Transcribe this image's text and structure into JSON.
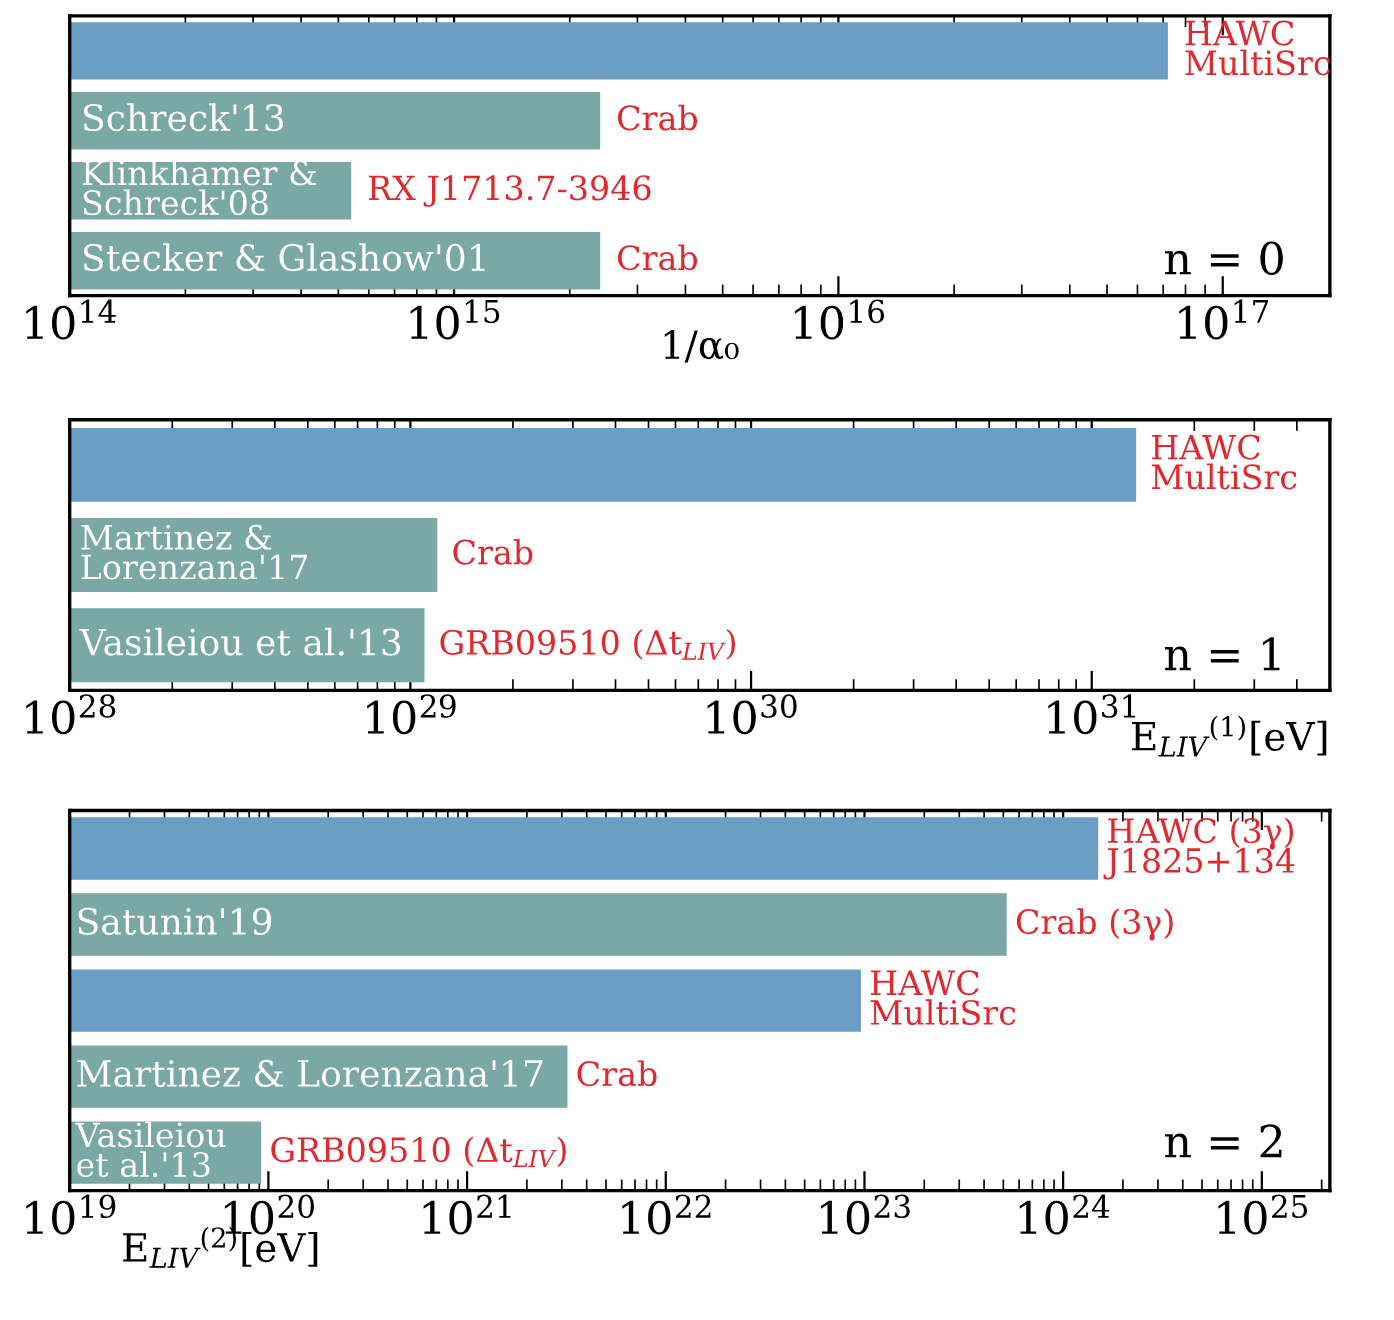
{
  "chart_data": [
    {
      "type": "bar",
      "orientation": "horizontal",
      "log": "x",
      "categories": [
        null,
        "Schreck'13",
        "Klinkhamer &\nSchreck'08",
        "Stecker & Glashow'01"
      ],
      "colors": [
        "#6a9ec4",
        "#7aa8a4",
        "#7aa8a4",
        "#7aa8a4"
      ],
      "values": [
        7.2e+16,
        2400000000000000.0,
        540000000000000.0,
        2400000000000000.0
      ],
      "xlim": [
        100000000000000.0,
        1.9e+17
      ],
      "xticks": [
        {
          "value": 100000000000000.0,
          "label": "10$^{14}$"
        },
        {
          "value": 1000000000000000.0,
          "label": "10$^{15}$"
        },
        {
          "value": 1e+16,
          "label": "10$^{16}$"
        },
        {
          "value": 1e+17,
          "label": "10$^{17}$"
        }
      ],
      "xlabel": "1/α₀",
      "annotations": [
        "HAWC\nMultiSrc",
        "Crab",
        "RX J1713.7-3946",
        "Crab",
        "n = 0"
      ]
    },
    {
      "type": "bar",
      "orientation": "horizontal",
      "log": "x",
      "categories": [
        null,
        "Martinez &\nLorenzana'17",
        "Vasileiou et al.'13"
      ],
      "colors": [
        "#6a9ec4",
        "#7aa8a4",
        "#7aa8a4"
      ],
      "values": [
        1.35e+31,
        1.2e+29,
        1.1e+29
      ],
      "xlim": [
        1e+28,
        5e+31
      ],
      "xticks": [
        {
          "value": 1e+28,
          "label": "10$^{28}$"
        },
        {
          "value": 1e+29,
          "label": "10$^{29}$"
        },
        {
          "value": 1e+30,
          "label": "10$^{30}$"
        },
        {
          "value": 1e+31,
          "label": "10$^{31}$"
        }
      ],
      "xlabel": "E$_{LIV}$$^{(1)}$[eV]",
      "annotations": [
        "HAWC\nMultiSrc",
        "Crab",
        "GRB09510 (Δt$_{LIV}$)",
        "n = 1"
      ]
    },
    {
      "type": "bar",
      "orientation": "horizontal",
      "log": "x",
      "categories": [
        null,
        "Satunin'19",
        null,
        "Martinez & Lorenzana'17",
        "Vasileiou\net al.'13"
      ],
      "colors": [
        "#6a9ec4",
        "#7aa8a4",
        "#6a9ec4",
        "#7aa8a4",
        "#7aa8a4"
      ],
      "values": [
        1.5e+24,
        5.2e+23,
        9.6e+22,
        3.2e+21,
        9.2e+19
      ],
      "xlim": [
        1e+19,
        2.2e+25
      ],
      "xticks": [
        {
          "value": 1e+19,
          "label": "10$^{19}$"
        },
        {
          "value": 1e+20,
          "label": "10$^{20}$"
        },
        {
          "value": 1e+21,
          "label": "10$^{21}$"
        },
        {
          "value": 1e+22,
          "label": "10$^{22}$"
        },
        {
          "value": 1e+23,
          "label": "10$^{23}$"
        },
        {
          "value": 1e+24,
          "label": "10$^{24}$"
        },
        {
          "value": 1e+25,
          "label": "10$^{25}$"
        }
      ],
      "xlabel": "E$_{LIV}$$^{(2)}$[eV]",
      "annotations": [
        "HAWC (3γ)\nJ1825+134",
        "Crab (3γ)",
        "HAWC\nMultiSrc",
        "Crab",
        "GRB09510 (Δt$_{LIV}$)",
        "n = 2"
      ]
    }
  ]
}
